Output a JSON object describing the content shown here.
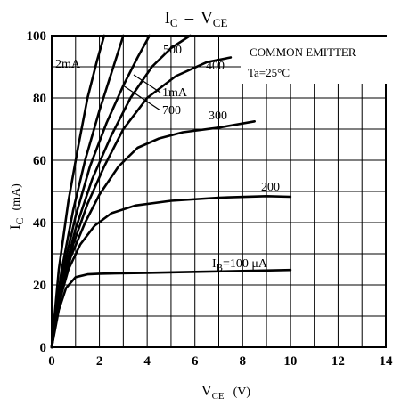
{
  "chart_data": {
    "type": "line",
    "title": "I",
    "title_subscript": "C",
    "title_dash": "–",
    "title_tail": "V",
    "title_tail_subscript": "CE",
    "xlabel": "V",
    "xlabel_subscript": "CE",
    "xlabel_unit": "(V)",
    "ylabel": "I",
    "ylabel_subscript": "C",
    "ylabel_unit": "(mA)",
    "xlim": [
      0,
      14
    ],
    "ylim": [
      0,
      100
    ],
    "x_ticks": [
      "0",
      "2",
      "4",
      "6",
      "8",
      "10",
      "12",
      "14"
    ],
    "y_ticks": [
      "0",
      "20",
      "40",
      "60",
      "80",
      "100"
    ],
    "grid": true,
    "annotations": {
      "common_emitter": "COMMON EMITTER",
      "ta": "Ta=25°C"
    },
    "series": [
      {
        "name": "IB=100μA",
        "label": "I",
        "label_sub": "B",
        "label_tail": "=100 μA",
        "points": [
          [
            0,
            0
          ],
          [
            0.3,
            12
          ],
          [
            0.6,
            19
          ],
          [
            1,
            22.5
          ],
          [
            1.5,
            23.4
          ],
          [
            2,
            23.6
          ],
          [
            4,
            23.9
          ],
          [
            6,
            24.2
          ],
          [
            8,
            24.5
          ],
          [
            10,
            24.8
          ]
        ]
      },
      {
        "name": "200",
        "label": "200",
        "points": [
          [
            0,
            0
          ],
          [
            0.3,
            14
          ],
          [
            0.7,
            25
          ],
          [
            1.2,
            33
          ],
          [
            1.8,
            39
          ],
          [
            2.5,
            43
          ],
          [
            3.5,
            45.5
          ],
          [
            5,
            47
          ],
          [
            7,
            48
          ],
          [
            9,
            48.5
          ],
          [
            10,
            48.3
          ]
        ]
      },
      {
        "name": "300",
        "label": "300",
        "points": [
          [
            0,
            0
          ],
          [
            0.3,
            15
          ],
          [
            0.8,
            29
          ],
          [
            1.4,
            40
          ],
          [
            2,
            49
          ],
          [
            2.8,
            58
          ],
          [
            3.6,
            64
          ],
          [
            4.5,
            67
          ],
          [
            5.5,
            69
          ],
          [
            7,
            70.5
          ],
          [
            8.5,
            72.5
          ]
        ]
      },
      {
        "name": "400",
        "label": "400",
        "points": [
          [
            0,
            0
          ],
          [
            0.4,
            18
          ],
          [
            0.9,
            33
          ],
          [
            1.5,
            46
          ],
          [
            2.2,
            58
          ],
          [
            3,
            70
          ],
          [
            4,
            80
          ],
          [
            5.2,
            87
          ],
          [
            6.5,
            91.5
          ],
          [
            7.5,
            93
          ]
        ]
      },
      {
        "name": "500",
        "label": "500",
        "points": [
          [
            0,
            0
          ],
          [
            0.4,
            20
          ],
          [
            1,
            38
          ],
          [
            1.7,
            54
          ],
          [
            2.5,
            68
          ],
          [
            3.3,
            80
          ],
          [
            4.2,
            90
          ],
          [
            5,
            96
          ],
          [
            5.8,
            100
          ]
        ]
      },
      {
        "name": "700",
        "label": "700",
        "points": [
          [
            0,
            0
          ],
          [
            0.4,
            22
          ],
          [
            1,
            42
          ],
          [
            1.6,
            58
          ],
          [
            2.3,
            72
          ],
          [
            3,
            84
          ],
          [
            3.6,
            93
          ],
          [
            4.1,
            100
          ]
        ]
      },
      {
        "name": "1mA",
        "label": "1mA",
        "points": [
          [
            0,
            0
          ],
          [
            0.4,
            24
          ],
          [
            0.9,
            44
          ],
          [
            1.4,
            60
          ],
          [
            2,
            76
          ],
          [
            2.5,
            88
          ],
          [
            3,
            100
          ]
        ]
      },
      {
        "name": "2mA",
        "label": "2mA",
        "points": [
          [
            0,
            0
          ],
          [
            0.3,
            25
          ],
          [
            0.7,
            47
          ],
          [
            1.1,
            64
          ],
          [
            1.5,
            80
          ],
          [
            1.9,
            92
          ],
          [
            2.2,
            100
          ]
        ]
      }
    ]
  }
}
